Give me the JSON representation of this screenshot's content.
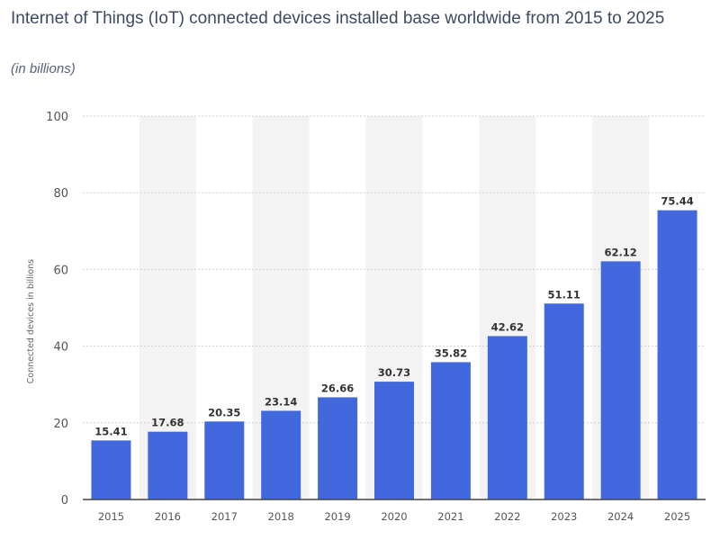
{
  "chart_data": {
    "type": "bar",
    "title": "Internet of Things (IoT) connected devices installed base worldwide from 2015 to 2025",
    "subtitle": "(in billions)",
    "xlabel": "",
    "ylabel": "Connected devices in billions",
    "categories": [
      "2015",
      "2016",
      "2017",
      "2018",
      "2019",
      "2020",
      "2021",
      "2022",
      "2023",
      "2024",
      "2025"
    ],
    "values": [
      15.41,
      17.68,
      20.35,
      23.14,
      26.66,
      30.73,
      35.82,
      42.62,
      51.11,
      62.12,
      75.44
    ],
    "ylim": [
      0,
      100
    ],
    "yticks": [
      0,
      20,
      40,
      60,
      80,
      100
    ],
    "grid": true,
    "legend": "none",
    "colors": {
      "bar": "#4169dd",
      "title": "#3c4a62",
      "band": "#f3f3f3"
    }
  }
}
